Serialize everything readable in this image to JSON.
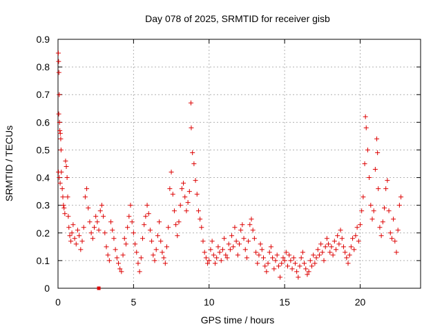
{
  "chart_data": {
    "type": "scatter",
    "title": "Day 078 of 2025, SRMTID for receiver gisb",
    "xlabel": "GPS time / hours",
    "ylabel": "SRMTID / TECUs",
    "xlim": [
      0,
      24
    ],
    "ylim": [
      0,
      0.9
    ],
    "xticks": [
      0,
      5,
      10,
      15,
      20
    ],
    "yticks": [
      0,
      0.1,
      0.2,
      0.3,
      0.4,
      0.5,
      0.6,
      0.7,
      0.8,
      0.9
    ],
    "grid": true,
    "marker": "+",
    "color": "#dd0000",
    "series": [
      {
        "name": "SRMTID",
        "points": [
          [
            0.02,
            0.85
          ],
          [
            0.04,
            0.82
          ],
          [
            0.06,
            0.78
          ],
          [
            0.08,
            0.7
          ],
          [
            0.05,
            0.63
          ],
          [
            0.1,
            0.6
          ],
          [
            0.12,
            0.57
          ],
          [
            0.15,
            0.56
          ],
          [
            0.18,
            0.54
          ],
          [
            0.2,
            0.5
          ],
          [
            0.03,
            0.42
          ],
          [
            0.08,
            0.4
          ],
          [
            0.14,
            0.38
          ],
          [
            0.22,
            0.42
          ],
          [
            0.28,
            0.36
          ],
          [
            0.32,
            0.33
          ],
          [
            0.36,
            0.3
          ],
          [
            0.4,
            0.29
          ],
          [
            0.45,
            0.27
          ],
          [
            0.5,
            0.46
          ],
          [
            0.55,
            0.44
          ],
          [
            0.6,
            0.4
          ],
          [
            0.64,
            0.33
          ],
          [
            0.68,
            0.26
          ],
          [
            0.72,
            0.22
          ],
          [
            0.78,
            0.19
          ],
          [
            0.85,
            0.17
          ],
          [
            0.92,
            0.2
          ],
          [
            1.0,
            0.23
          ],
          [
            1.1,
            0.18
          ],
          [
            1.2,
            0.16
          ],
          [
            1.3,
            0.21
          ],
          [
            1.4,
            0.19
          ],
          [
            1.5,
            0.14
          ],
          [
            1.6,
            0.17
          ],
          [
            1.7,
            0.22
          ],
          [
            1.8,
            0.33
          ],
          [
            1.9,
            0.36
          ],
          [
            2.0,
            0.29
          ],
          [
            2.1,
            0.24
          ],
          [
            2.2,
            0.2
          ],
          [
            2.3,
            0.18
          ],
          [
            2.4,
            0.22
          ],
          [
            2.5,
            0.26
          ],
          [
            2.6,
            0.24
          ],
          [
            2.7,
            0.21
          ],
          [
            2.8,
            0.28
          ],
          [
            2.9,
            0.3
          ],
          [
            3.0,
            0.26
          ],
          [
            3.1,
            0.2
          ],
          [
            3.2,
            0.15
          ],
          [
            3.3,
            0.12
          ],
          [
            3.4,
            0.1
          ],
          [
            3.5,
            0.24
          ],
          [
            3.6,
            0.21
          ],
          [
            3.7,
            0.18
          ],
          [
            3.8,
            0.14
          ],
          [
            3.9,
            0.11
          ],
          [
            4.0,
            0.09
          ],
          [
            4.1,
            0.07
          ],
          [
            4.2,
            0.06
          ],
          [
            4.3,
            0.12
          ],
          [
            4.4,
            0.18
          ],
          [
            4.5,
            0.16
          ],
          [
            4.6,
            0.22
          ],
          [
            4.7,
            0.26
          ],
          [
            4.8,
            0.3
          ],
          [
            4.9,
            0.24
          ],
          [
            5.0,
            0.2
          ],
          [
            5.1,
            0.16
          ],
          [
            5.2,
            0.13
          ],
          [
            5.3,
            0.09
          ],
          [
            5.4,
            0.06
          ],
          [
            5.5,
            0.11
          ],
          [
            5.6,
            0.18
          ],
          [
            5.7,
            0.23
          ],
          [
            5.8,
            0.26
          ],
          [
            5.9,
            0.3
          ],
          [
            6.0,
            0.27
          ],
          [
            6.1,
            0.21
          ],
          [
            6.2,
            0.17
          ],
          [
            6.3,
            0.12
          ],
          [
            6.4,
            0.1
          ],
          [
            6.5,
            0.14
          ],
          [
            6.6,
            0.19
          ],
          [
            6.7,
            0.24
          ],
          [
            6.8,
            0.17
          ],
          [
            6.9,
            0.13
          ],
          [
            7.0,
            0.11
          ],
          [
            7.1,
            0.09
          ],
          [
            7.2,
            0.15
          ],
          [
            7.3,
            0.22
          ],
          [
            7.4,
            0.36
          ],
          [
            7.5,
            0.42
          ],
          [
            7.6,
            0.34
          ],
          [
            7.7,
            0.28
          ],
          [
            7.8,
            0.23
          ],
          [
            7.9,
            0.19
          ],
          [
            8.0,
            0.24
          ],
          [
            8.1,
            0.3
          ],
          [
            8.2,
            0.36
          ],
          [
            8.3,
            0.38
          ],
          [
            8.4,
            0.33
          ],
          [
            8.5,
            0.28
          ],
          [
            8.6,
            0.31
          ],
          [
            8.7,
            0.35
          ],
          [
            8.8,
            0.67
          ],
          [
            8.82,
            0.58
          ],
          [
            8.9,
            0.49
          ],
          [
            9.0,
            0.45
          ],
          [
            9.1,
            0.39
          ],
          [
            9.2,
            0.34
          ],
          [
            9.3,
            0.28
          ],
          [
            9.4,
            0.25
          ],
          [
            9.5,
            0.22
          ],
          [
            9.6,
            0.17
          ],
          [
            9.7,
            0.13
          ],
          [
            9.8,
            0.11
          ],
          [
            9.9,
            0.09
          ],
          [
            10.0,
            0.1
          ],
          [
            10.1,
            0.14
          ],
          [
            10.2,
            0.17
          ],
          [
            10.3,
            0.12
          ],
          [
            10.4,
            0.09
          ],
          [
            10.5,
            0.11
          ],
          [
            10.6,
            0.15
          ],
          [
            10.7,
            0.13
          ],
          [
            10.8,
            0.1
          ],
          [
            10.9,
            0.14
          ],
          [
            11.0,
            0.18
          ],
          [
            11.1,
            0.12
          ],
          [
            11.2,
            0.11
          ],
          [
            11.3,
            0.16
          ],
          [
            11.4,
            0.14
          ],
          [
            11.5,
            0.19
          ],
          [
            11.6,
            0.15
          ],
          [
            11.7,
            0.22
          ],
          [
            11.8,
            0.17
          ],
          [
            11.9,
            0.12
          ],
          [
            12.0,
            0.16
          ],
          [
            12.1,
            0.21
          ],
          [
            12.2,
            0.23
          ],
          [
            12.3,
            0.18
          ],
          [
            12.4,
            0.14
          ],
          [
            12.5,
            0.11
          ],
          [
            12.6,
            0.17
          ],
          [
            12.7,
            0.23
          ],
          [
            12.8,
            0.25
          ],
          [
            12.9,
            0.21
          ],
          [
            13.0,
            0.18
          ],
          [
            13.1,
            0.13
          ],
          [
            13.2,
            0.09
          ],
          [
            13.3,
            0.12
          ],
          [
            13.4,
            0.16
          ],
          [
            13.5,
            0.14
          ],
          [
            13.6,
            0.11
          ],
          [
            13.7,
            0.08
          ],
          [
            13.8,
            0.06
          ],
          [
            13.9,
            0.09
          ],
          [
            14.0,
            0.13
          ],
          [
            14.1,
            0.15
          ],
          [
            14.2,
            0.11
          ],
          [
            14.3,
            0.07
          ],
          [
            14.4,
            0.1
          ],
          [
            14.5,
            0.12
          ],
          [
            14.6,
            0.08
          ],
          [
            14.7,
            0.04
          ],
          [
            14.8,
            0.09
          ],
          [
            14.9,
            0.11
          ],
          [
            15.0,
            0.1
          ],
          [
            15.1,
            0.13
          ],
          [
            15.2,
            0.08
          ],
          [
            15.3,
            0.12
          ],
          [
            15.4,
            0.1
          ],
          [
            15.5,
            0.07
          ],
          [
            15.6,
            0.11
          ],
          [
            15.7,
            0.09
          ],
          [
            15.8,
            0.06
          ],
          [
            15.9,
            0.04
          ],
          [
            16.0,
            0.08
          ],
          [
            16.1,
            0.11
          ],
          [
            16.2,
            0.13
          ],
          [
            16.3,
            0.09
          ],
          [
            16.4,
            0.07
          ],
          [
            16.5,
            0.05
          ],
          [
            16.6,
            0.06
          ],
          [
            16.7,
            0.1
          ],
          [
            16.8,
            0.08
          ],
          [
            16.9,
            0.12
          ],
          [
            17.0,
            0.09
          ],
          [
            17.1,
            0.11
          ],
          [
            17.2,
            0.14
          ],
          [
            17.3,
            0.12
          ],
          [
            17.4,
            0.16
          ],
          [
            17.5,
            0.13
          ],
          [
            17.6,
            0.1
          ],
          [
            17.7,
            0.15
          ],
          [
            17.8,
            0.18
          ],
          [
            17.9,
            0.16
          ],
          [
            18.0,
            0.13
          ],
          [
            18.1,
            0.15
          ],
          [
            18.2,
            0.12
          ],
          [
            18.3,
            0.17
          ],
          [
            18.4,
            0.14
          ],
          [
            18.5,
            0.19
          ],
          [
            18.6,
            0.16
          ],
          [
            18.7,
            0.21
          ],
          [
            18.8,
            0.18
          ],
          [
            18.9,
            0.15
          ],
          [
            19.0,
            0.13
          ],
          [
            19.1,
            0.11
          ],
          [
            19.2,
            0.09
          ],
          [
            19.3,
            0.12
          ],
          [
            19.4,
            0.15
          ],
          [
            19.5,
            0.18
          ],
          [
            19.6,
            0.14
          ],
          [
            19.7,
            0.19
          ],
          [
            19.8,
            0.22
          ],
          [
            19.9,
            0.17
          ],
          [
            20.0,
            0.23
          ],
          [
            20.1,
            0.28
          ],
          [
            20.2,
            0.33
          ],
          [
            20.3,
            0.45
          ],
          [
            20.35,
            0.62
          ],
          [
            20.4,
            0.58
          ],
          [
            20.5,
            0.5
          ],
          [
            20.6,
            0.4
          ],
          [
            20.7,
            0.3
          ],
          [
            20.8,
            0.25
          ],
          [
            20.9,
            0.28
          ],
          [
            21.0,
            0.43
          ],
          [
            21.1,
            0.54
          ],
          [
            21.15,
            0.49
          ],
          [
            21.2,
            0.36
          ],
          [
            21.3,
            0.22
          ],
          [
            21.4,
            0.19
          ],
          [
            21.5,
            0.24
          ],
          [
            21.6,
            0.29
          ],
          [
            21.7,
            0.36
          ],
          [
            21.8,
            0.39
          ],
          [
            21.9,
            0.28
          ],
          [
            22.0,
            0.2
          ],
          [
            22.1,
            0.18
          ],
          [
            22.2,
            0.25
          ],
          [
            22.3,
            0.17
          ],
          [
            22.4,
            0.13
          ],
          [
            22.5,
            0.21
          ],
          [
            22.6,
            0.3
          ],
          [
            22.7,
            0.33
          ]
        ]
      }
    ],
    "outlier_marks": [
      [
        2.7,
        0.0
      ]
    ]
  }
}
